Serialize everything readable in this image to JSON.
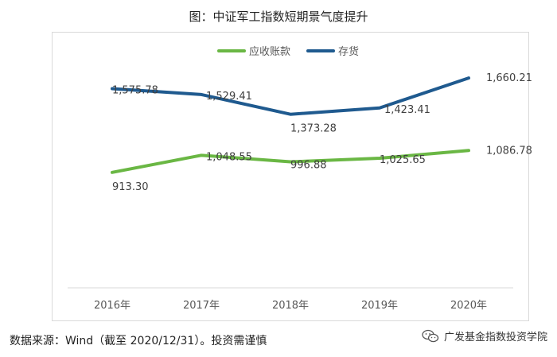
{
  "title": "图：中证军工指数短期景气度提升",
  "source": "数据来源：Wind（截至 2020/12/31）。投资需谨慎",
  "brand": "广发基金指数投资学院",
  "chart_data": {
    "type": "line",
    "categories": [
      "2016年",
      "2017年",
      "2018年",
      "2019年",
      "2020年"
    ],
    "series": [
      {
        "name": "应收账款",
        "color": "#6ab744",
        "values": [
          913.3,
          1048.55,
          996.88,
          1025.65,
          1086.78
        ],
        "labels": [
          "913.30",
          "1,048.55",
          "996.88",
          "1,025.65",
          "1,086.78"
        ]
      },
      {
        "name": "存货",
        "color": "#1f5a8f",
        "values": [
          1575.78,
          1529.41,
          1373.28,
          1423.41,
          1660.21
        ],
        "labels": [
          "1,575.78",
          "1,529.41",
          "1,373.28",
          "1,423.41",
          "1,660.21"
        ]
      }
    ],
    "ylim": [
      0,
      1900
    ],
    "grid": false,
    "legend": "top"
  }
}
